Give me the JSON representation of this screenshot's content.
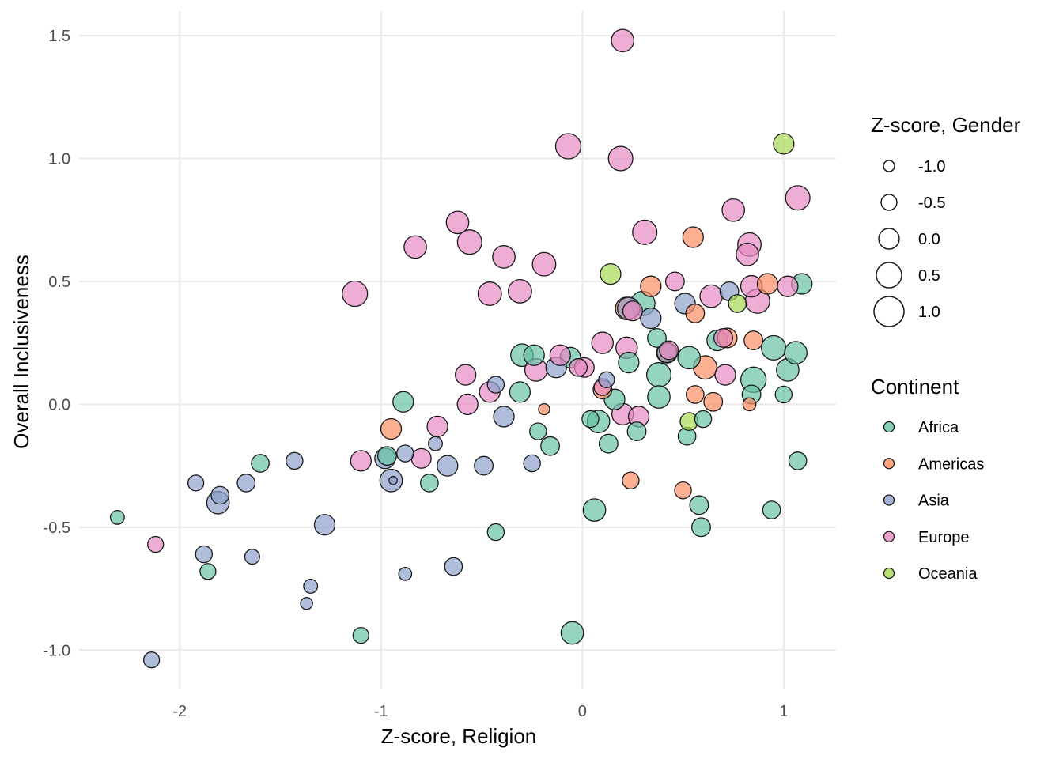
{
  "chart_data": {
    "type": "scatter",
    "xlabel": "Z-score, Religion",
    "ylabel": "Overall Inclusiveness",
    "xlim": [
      -2.5,
      1.26
    ],
    "ylim": [
      -1.16,
      1.6
    ],
    "x_ticks": [
      -2,
      -1,
      0,
      1
    ],
    "x_tick_labels": [
      "-2",
      "-1",
      "0",
      "1"
    ],
    "y_ticks": [
      -1.0,
      -0.5,
      0.0,
      0.5,
      1.0,
      1.5
    ],
    "y_tick_labels": [
      "-1.0",
      "-0.5",
      "0.0",
      "0.5",
      "1.0",
      "1.5"
    ],
    "grid": true,
    "legend_position": "right",
    "size_legend": {
      "title": "Z-score, Gender",
      "values": [
        -1.0,
        -0.5,
        0.0,
        0.5,
        1.0
      ],
      "labels": [
        "-1.0",
        "-0.5",
        "0.0",
        "0.5",
        "1.0"
      ]
    },
    "color_legend": {
      "title": "Continent",
      "entries": [
        {
          "name": "Africa",
          "color": "#66c2a5"
        },
        {
          "name": "Americas",
          "color": "#fc8d62"
        },
        {
          "name": "Asia",
          "color": "#8da0cb"
        },
        {
          "name": "Europe",
          "color": "#e78ac3"
        },
        {
          "name": "Oceania",
          "color": "#a6d854"
        }
      ]
    },
    "series": [
      {
        "name": "Africa",
        "points": [
          {
            "x": -2.31,
            "y": -0.46,
            "g": -0.7
          },
          {
            "x": -1.86,
            "y": -0.68,
            "g": -0.5
          },
          {
            "x": -1.6,
            "y": -0.24,
            "g": -0.3
          },
          {
            "x": -1.1,
            "y": -0.94,
            "g": -0.5
          },
          {
            "x": -0.97,
            "y": -0.21,
            "g": -0.2
          },
          {
            "x": -0.89,
            "y": 0.01,
            "g": 0.0
          },
          {
            "x": -0.76,
            "y": -0.32,
            "g": -0.3
          },
          {
            "x": -0.43,
            "y": -0.52,
            "g": -0.4
          },
          {
            "x": -0.3,
            "y": 0.2,
            "g": 0.2
          },
          {
            "x": -0.31,
            "y": 0.05,
            "g": 0.0
          },
          {
            "x": -0.24,
            "y": 0.2,
            "g": 0.0
          },
          {
            "x": -0.22,
            "y": -0.11,
            "g": -0.4
          },
          {
            "x": -0.16,
            "y": -0.17,
            "g": -0.2
          },
          {
            "x": -0.06,
            "y": 0.19,
            "g": 0.0
          },
          {
            "x": -0.05,
            "y": -0.93,
            "g": 0.2
          },
          {
            "x": 0.04,
            "y": -0.06,
            "g": -0.4
          },
          {
            "x": 0.06,
            "y": -0.43,
            "g": 0.2
          },
          {
            "x": 0.08,
            "y": -0.07,
            "g": 0.2
          },
          {
            "x": 0.13,
            "y": -0.16,
            "g": -0.2
          },
          {
            "x": 0.16,
            "y": 0.02,
            "g": 0.0
          },
          {
            "x": 0.23,
            "y": 0.17,
            "g": 0.0
          },
          {
            "x": 0.27,
            "y": -0.11,
            "g": -0.2
          },
          {
            "x": 0.3,
            "y": 0.41,
            "g": 0.4
          },
          {
            "x": 0.37,
            "y": 0.27,
            "g": -0.2
          },
          {
            "x": 0.38,
            "y": 0.12,
            "g": 0.4
          },
          {
            "x": 0.38,
            "y": 0.03,
            "g": 0.2
          },
          {
            "x": 0.52,
            "y": -0.13,
            "g": -0.3
          },
          {
            "x": 0.53,
            "y": 0.19,
            "g": 0.2
          },
          {
            "x": 0.58,
            "y": -0.41,
            "g": -0.2
          },
          {
            "x": 0.59,
            "y": -0.5,
            "g": -0.2
          },
          {
            "x": 0.6,
            "y": -0.06,
            "g": -0.4
          },
          {
            "x": 0.67,
            "y": 0.26,
            "g": 0.0
          },
          {
            "x": 0.84,
            "y": 0.04,
            "g": -0.2
          },
          {
            "x": 0.85,
            "y": 0.1,
            "g": 0.5
          },
          {
            "x": 0.94,
            "y": -0.43,
            "g": -0.3
          },
          {
            "x": 0.95,
            "y": 0.23,
            "g": 0.4
          },
          {
            "x": 1.0,
            "y": 0.04,
            "g": -0.4
          },
          {
            "x": 1.02,
            "y": 0.14,
            "g": 0.2
          },
          {
            "x": 1.06,
            "y": 0.21,
            "g": 0.2
          },
          {
            "x": 1.07,
            "y": -0.23,
            "g": -0.3
          },
          {
            "x": 1.09,
            "y": 0.49,
            "g": 0.0
          },
          {
            "x": 0.42,
            "y": 0.21,
            "g": 0.0
          }
        ]
      },
      {
        "name": "Americas",
        "points": [
          {
            "x": -0.95,
            "y": -0.1,
            "g": 0.0
          },
          {
            "x": -0.19,
            "y": -0.02,
            "g": -1.0
          },
          {
            "x": 0.1,
            "y": 0.06,
            "g": -0.2
          },
          {
            "x": 0.22,
            "y": 0.39,
            "g": 0.2
          },
          {
            "x": 0.24,
            "y": -0.31,
            "g": -0.4
          },
          {
            "x": 0.34,
            "y": 0.48,
            "g": 0.0
          },
          {
            "x": 0.42,
            "y": 0.21,
            "g": 0.0
          },
          {
            "x": 0.5,
            "y": -0.35,
            "g": -0.4
          },
          {
            "x": 0.55,
            "y": 0.68,
            "g": 0.0
          },
          {
            "x": 0.56,
            "y": 0.37,
            "g": -0.2
          },
          {
            "x": 0.56,
            "y": 0.04,
            "g": -0.3
          },
          {
            "x": 0.61,
            "y": 0.15,
            "g": 0.3
          },
          {
            "x": 0.65,
            "y": 0.01,
            "g": -0.2
          },
          {
            "x": 0.72,
            "y": 0.27,
            "g": -0.1
          },
          {
            "x": 0.83,
            "y": 0.0,
            "g": -0.8
          },
          {
            "x": 0.85,
            "y": 0.26,
            "g": -0.2
          },
          {
            "x": 0.92,
            "y": 0.49,
            "g": 0.0
          }
        ]
      },
      {
        "name": "Asia",
        "points": [
          {
            "x": -2.14,
            "y": -1.04,
            "g": -0.5
          },
          {
            "x": -1.92,
            "y": -0.32,
            "g": -0.5
          },
          {
            "x": -1.88,
            "y": -0.61,
            "g": -0.4
          },
          {
            "x": -1.81,
            "y": -0.4,
            "g": 0.2
          },
          {
            "x": -1.8,
            "y": -0.37,
            "g": -0.3
          },
          {
            "x": -1.67,
            "y": -0.32,
            "g": -0.3
          },
          {
            "x": -1.64,
            "y": -0.62,
            "g": -0.6
          },
          {
            "x": -1.43,
            "y": -0.23,
            "g": -0.4
          },
          {
            "x": -1.37,
            "y": -0.81,
            "g": -0.9
          },
          {
            "x": -1.35,
            "y": -0.74,
            "g": -0.7
          },
          {
            "x": -1.28,
            "y": -0.49,
            "g": 0.0
          },
          {
            "x": -0.98,
            "y": -0.22,
            "g": 0.0
          },
          {
            "x": -0.95,
            "y": -0.31,
            "g": 0.2
          },
          {
            "x": -0.94,
            "y": -0.31,
            "g": -1.3
          },
          {
            "x": -0.88,
            "y": -0.69,
            "g": -0.8
          },
          {
            "x": -0.88,
            "y": -0.2,
            "g": -0.4
          },
          {
            "x": -0.73,
            "y": -0.16,
            "g": -0.7
          },
          {
            "x": -0.67,
            "y": -0.25,
            "g": 0.0
          },
          {
            "x": -0.64,
            "y": -0.66,
            "g": -0.3
          },
          {
            "x": -0.49,
            "y": -0.25,
            "g": -0.2
          },
          {
            "x": -0.43,
            "y": 0.08,
            "g": -0.4
          },
          {
            "x": -0.39,
            "y": -0.05,
            "g": 0.0
          },
          {
            "x": -0.25,
            "y": -0.24,
            "g": -0.4
          },
          {
            "x": -0.13,
            "y": 0.15,
            "g": 0.0
          },
          {
            "x": 0.12,
            "y": 0.1,
            "g": -0.5
          },
          {
            "x": 0.23,
            "y": 0.39,
            "g": 0.2
          },
          {
            "x": 0.34,
            "y": 0.35,
            "g": 0.0
          },
          {
            "x": 0.51,
            "y": 0.41,
            "g": 0.0
          },
          {
            "x": 0.73,
            "y": 0.46,
            "g": -0.2
          },
          {
            "x": 0.42,
            "y": 0.21,
            "g": -0.1
          }
        ]
      },
      {
        "name": "Europe",
        "points": [
          {
            "x": -2.12,
            "y": -0.57,
            "g": -0.5
          },
          {
            "x": -1.13,
            "y": 0.45,
            "g": 0.5
          },
          {
            "x": -1.1,
            "y": -0.23,
            "g": 0.0
          },
          {
            "x": -0.83,
            "y": 0.64,
            "g": 0.2
          },
          {
            "x": -0.8,
            "y": -0.22,
            "g": -0.1
          },
          {
            "x": -0.72,
            "y": -0.09,
            "g": 0.0
          },
          {
            "x": -0.62,
            "y": 0.74,
            "g": 0.2
          },
          {
            "x": -0.58,
            "y": 0.12,
            "g": 0.0
          },
          {
            "x": -0.57,
            "y": 0.0,
            "g": 0.0
          },
          {
            "x": -0.56,
            "y": 0.66,
            "g": 0.4
          },
          {
            "x": -0.46,
            "y": 0.45,
            "g": 0.3
          },
          {
            "x": -0.46,
            "y": 0.05,
            "g": 0.0
          },
          {
            "x": -0.39,
            "y": 0.6,
            "g": 0.2
          },
          {
            "x": -0.31,
            "y": 0.46,
            "g": 0.3
          },
          {
            "x": -0.23,
            "y": 0.14,
            "g": 0.2
          },
          {
            "x": -0.19,
            "y": 0.57,
            "g": 0.3
          },
          {
            "x": -0.11,
            "y": 0.2,
            "g": 0.0
          },
          {
            "x": -0.07,
            "y": 1.05,
            "g": 0.5
          },
          {
            "x": -0.02,
            "y": 0.15,
            "g": -0.3
          },
          {
            "x": 0.01,
            "y": 0.15,
            "g": -0.1
          },
          {
            "x": 0.1,
            "y": 0.25,
            "g": 0.1
          },
          {
            "x": 0.19,
            "y": 1.0,
            "g": 0.4
          },
          {
            "x": 0.2,
            "y": 1.48,
            "g": 0.2
          },
          {
            "x": 0.2,
            "y": -0.04,
            "g": 0.1
          },
          {
            "x": 0.22,
            "y": 0.23,
            "g": 0.1
          },
          {
            "x": 0.28,
            "y": -0.05,
            "g": 0.0
          },
          {
            "x": 0.31,
            "y": 0.7,
            "g": 0.4
          },
          {
            "x": 0.46,
            "y": 0.5,
            "g": -0.2
          },
          {
            "x": 0.64,
            "y": 0.44,
            "g": 0.2
          },
          {
            "x": 0.7,
            "y": 0.27,
            "g": -0.2
          },
          {
            "x": 0.71,
            "y": 0.12,
            "g": 0.0
          },
          {
            "x": 0.75,
            "y": 0.79,
            "g": 0.2
          },
          {
            "x": 0.82,
            "y": 0.61,
            "g": 0.2
          },
          {
            "x": 0.83,
            "y": 0.65,
            "g": 0.3
          },
          {
            "x": 0.84,
            "y": 0.48,
            "g": 0.1
          },
          {
            "x": 0.87,
            "y": 0.42,
            "g": 0.4
          },
          {
            "x": 1.02,
            "y": 0.48,
            "g": 0.0
          },
          {
            "x": 1.07,
            "y": 0.84,
            "g": 0.4
          },
          {
            "x": 0.43,
            "y": 0.22,
            "g": -0.2
          },
          {
            "x": 0.1,
            "y": 0.07,
            "g": -0.4
          },
          {
            "x": 0.25,
            "y": 0.38,
            "g": -0.1
          }
        ]
      },
      {
        "name": "Oceania",
        "points": [
          {
            "x": 0.14,
            "y": 0.53,
            "g": 0.0
          },
          {
            "x": 0.53,
            "y": -0.07,
            "g": -0.3
          },
          {
            "x": 0.77,
            "y": 0.41,
            "g": -0.3
          },
          {
            "x": 1.0,
            "y": 1.06,
            "g": 0.0
          }
        ]
      }
    ]
  }
}
